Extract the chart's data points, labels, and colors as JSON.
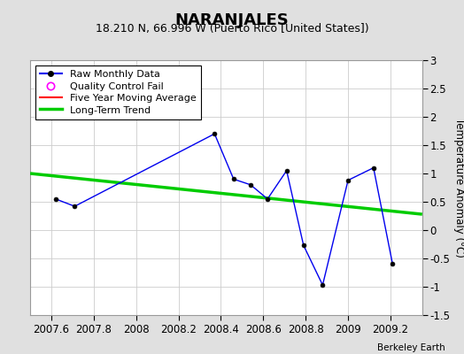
{
  "title": "NARANJALES",
  "subtitle": "18.210 N, 66.996 W (Puerto Rico [United States])",
  "ylabel": "Temperature Anomaly (°C)",
  "watermark": "Berkeley Earth",
  "xlim": [
    2007.5,
    2009.35
  ],
  "ylim": [
    -1.5,
    3.0
  ],
  "xticks": [
    2007.6,
    2007.8,
    2008.0,
    2008.2,
    2008.4,
    2008.6,
    2008.8,
    2009.0,
    2009.2
  ],
  "yticks": [
    -1.5,
    -1.0,
    -0.5,
    0.0,
    0.5,
    1.0,
    1.5,
    2.0,
    2.5,
    3.0
  ],
  "raw_x": [
    2007.62,
    2007.71,
    2008.37,
    2008.46,
    2008.54,
    2008.62,
    2008.71,
    2008.79,
    2008.88,
    2009.0,
    2009.12,
    2009.21
  ],
  "raw_y": [
    0.55,
    0.42,
    1.7,
    0.9,
    0.8,
    0.55,
    1.05,
    -0.27,
    -0.97,
    0.88,
    1.1,
    -0.6
  ],
  "trend_x": [
    2007.5,
    2009.35
  ],
  "trend_y": [
    1.0,
    0.28
  ],
  "bg_color": "#e0e0e0",
  "plot_bg_color": "#ffffff",
  "raw_line_color": "#0000ee",
  "raw_marker_color": "#000000",
  "trend_color": "#00cc00",
  "mavg_color": "#ff0000",
  "qc_color": "#ff00ff",
  "title_fontsize": 13,
  "subtitle_fontsize": 9,
  "tick_fontsize": 8.5,
  "ylabel_fontsize": 8.5
}
